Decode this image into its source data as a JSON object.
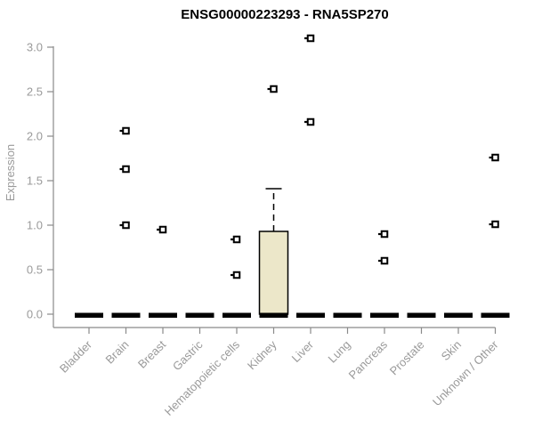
{
  "chart_data": {
    "type": "box",
    "title": "ENSG00000223293 - RNA5SP270",
    "xlabel": "",
    "ylabel": "Expression",
    "ylim": [
      0,
      3.15
    ],
    "yticks": [
      0.0,
      0.5,
      1.0,
      1.5,
      2.0,
      2.5,
      3.0
    ],
    "grid": false,
    "legend": "none",
    "categories": [
      "Bladder",
      "Brain",
      "Breast",
      "Gastric",
      "Hematopoietic cells",
      "Kidney",
      "Liver",
      "Lung",
      "Pancreas",
      "Prostate",
      "Skin",
      "Unknown / Other"
    ],
    "boxes": [
      {
        "category": "Bladder",
        "median": 0,
        "q1": 0,
        "q3": 0,
        "whisker_low": 0,
        "whisker_high": 0,
        "outliers": []
      },
      {
        "category": "Brain",
        "median": 0,
        "q1": 0,
        "q3": 0,
        "whisker_low": 0,
        "whisker_high": 0,
        "outliers": [
          2.06,
          1.63,
          1.0
        ]
      },
      {
        "category": "Breast",
        "median": 0,
        "q1": 0,
        "q3": 0,
        "whisker_low": 0,
        "whisker_high": 0,
        "outliers": [
          0.95
        ]
      },
      {
        "category": "Gastric",
        "median": 0,
        "q1": 0,
        "q3": 0,
        "whisker_low": 0,
        "whisker_high": 0,
        "outliers": []
      },
      {
        "category": "Hematopoietic cells",
        "median": 0,
        "q1": 0,
        "q3": 0,
        "whisker_low": 0,
        "whisker_high": 0,
        "outliers": [
          0.84,
          0.44
        ]
      },
      {
        "category": "Kidney",
        "median": 0,
        "q1": 0,
        "q3": 0.93,
        "whisker_low": 0,
        "whisker_high": 1.41,
        "outliers": [
          2.53
        ]
      },
      {
        "category": "Liver",
        "median": 0,
        "q1": 0,
        "q3": 0,
        "whisker_low": 0,
        "whisker_high": 0,
        "outliers": [
          3.1,
          2.16
        ]
      },
      {
        "category": "Lung",
        "median": 0,
        "q1": 0,
        "q3": 0,
        "whisker_low": 0,
        "whisker_high": 0,
        "outliers": []
      },
      {
        "category": "Pancreas",
        "median": 0,
        "q1": 0,
        "q3": 0,
        "whisker_low": 0,
        "whisker_high": 0,
        "outliers": [
          0.9,
          0.6
        ]
      },
      {
        "category": "Prostate",
        "median": 0,
        "q1": 0,
        "q3": 0,
        "whisker_low": 0,
        "whisker_high": 0,
        "outliers": []
      },
      {
        "category": "Skin",
        "median": 0,
        "q1": 0,
        "q3": 0,
        "whisker_low": 0,
        "whisker_high": 0,
        "outliers": []
      },
      {
        "category": "Unknown / Other",
        "median": 0,
        "q1": 0,
        "q3": 0,
        "whisker_low": 0,
        "whisker_high": 0,
        "outliers": [
          1.76,
          1.01
        ]
      }
    ],
    "colors": {
      "title": "#000000",
      "axis": "#8a8a8a",
      "tick_label": "#9a9a9a",
      "axis_title": "#9a9a9a",
      "box_fill": "#ece7c9",
      "box_stroke": "#000000",
      "median_bar": "#000000",
      "outlier": "#000000",
      "background": "#ffffff"
    }
  }
}
